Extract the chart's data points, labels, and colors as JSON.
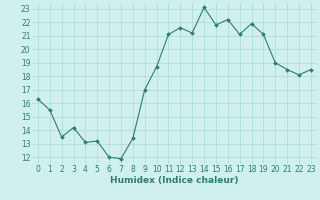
{
  "x": [
    0,
    1,
    2,
    3,
    4,
    5,
    6,
    7,
    8,
    9,
    10,
    11,
    12,
    13,
    14,
    15,
    16,
    17,
    18,
    19,
    20,
    21,
    22,
    23
  ],
  "y": [
    16.3,
    15.5,
    13.5,
    14.2,
    13.1,
    13.2,
    12.0,
    11.9,
    13.4,
    17.0,
    18.7,
    21.1,
    21.6,
    21.2,
    23.1,
    21.8,
    22.2,
    21.1,
    21.9,
    21.1,
    19.0,
    18.5,
    18.1,
    18.5
  ],
  "line_color": "#2e7d6e",
  "marker": "D",
  "marker_size": 2.0,
  "bg_color": "#cff0ec",
  "grid_color": "#aadbd5",
  "xlabel": "Humidex (Indice chaleur)",
  "ylim": [
    11.5,
    23.5
  ],
  "xlim": [
    -0.5,
    23.5
  ],
  "yticks": [
    12,
    13,
    14,
    15,
    16,
    17,
    18,
    19,
    20,
    21,
    22,
    23
  ],
  "xticks": [
    0,
    1,
    2,
    3,
    4,
    5,
    6,
    7,
    8,
    9,
    10,
    11,
    12,
    13,
    14,
    15,
    16,
    17,
    18,
    19,
    20,
    21,
    22,
    23
  ],
  "xtick_labels": [
    "0",
    "1",
    "2",
    "3",
    "4",
    "5",
    "6",
    "7",
    "8",
    "9",
    "10",
    "11",
    "12",
    "13",
    "14",
    "15",
    "16",
    "17",
    "18",
    "19",
    "20",
    "21",
    "22",
    "23"
  ],
  "tick_color": "#2e7d6e",
  "label_fontsize": 6.5,
  "tick_fontsize": 5.5,
  "line_width": 0.8
}
